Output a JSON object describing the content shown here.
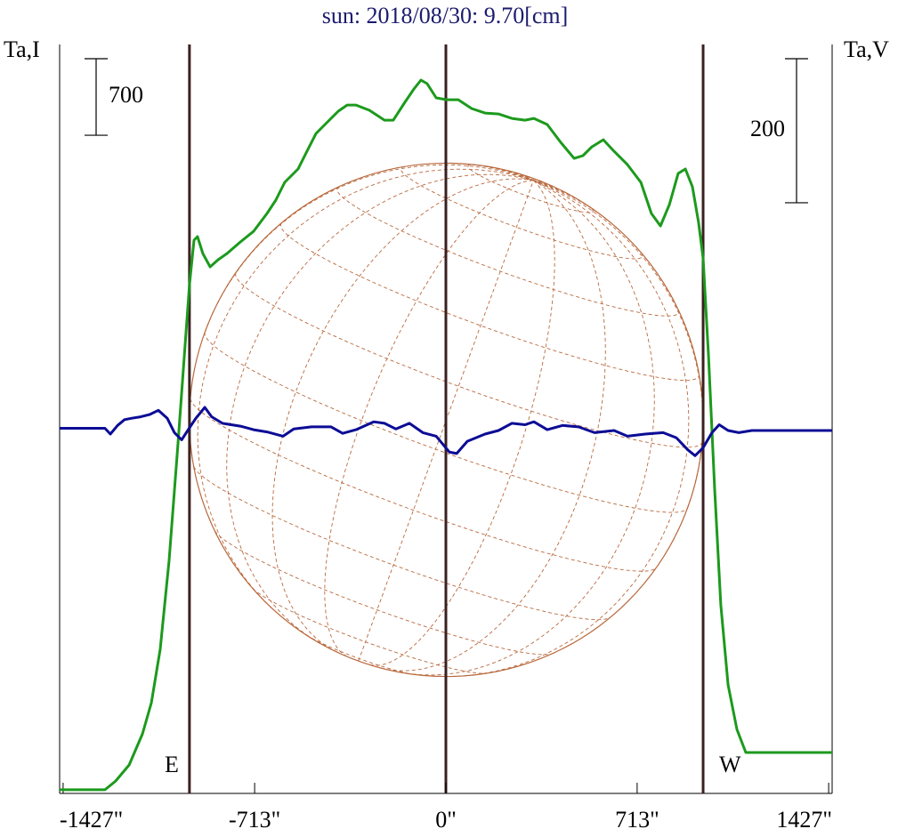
{
  "chart_data": {
    "type": "line",
    "title": "sun: 2018/08/30: 9.70[cm]",
    "ylabel": "Ta,I",
    "y2label": "Ta,V",
    "xlim": [
      -1440,
      1440
    ],
    "ylim": [
      0,
      6850
    ],
    "y2lim": [
      -500,
      540
    ],
    "xticks": [
      {
        "value": -1427,
        "label": "-1427\""
      },
      {
        "value": -713,
        "label": "-713\""
      },
      {
        "value": 0,
        "label": "0\""
      },
      {
        "value": 713,
        "label": "713\""
      },
      {
        "value": 1427,
        "label": "1427\""
      }
    ],
    "vlines": [
      -956,
      0,
      959
    ],
    "vline_color": "#3b2020",
    "limb_labels": [
      "E",
      "W"
    ],
    "disk_color": "#b8693d",
    "i_scale": 700,
    "v_scale": 200,
    "series": [
      {
        "color": "#1c9a1c",
        "axis": "y",
        "x": [
          -1440,
          -1271,
          -1231,
          -1181,
          -1131,
          -1098,
          -1065,
          -1032,
          -999,
          -975,
          -956,
          -939,
          -926,
          -906,
          -879,
          -849,
          -816,
          -766,
          -717,
          -667,
          -634,
          -601,
          -551,
          -518,
          -484,
          -451,
          -401,
          -368,
          -335,
          -285,
          -229,
          -196,
          -153,
          -119,
          -93,
          -70,
          -36,
          3,
          46,
          96,
          146,
          196,
          246,
          295,
          328,
          378,
          428,
          478,
          511,
          544,
          587,
          627,
          677,
          727,
          766,
          800,
          833,
          866,
          893,
          919,
          942,
          959,
          979,
          1002,
          1025,
          1052,
          1085,
          1118,
          1440
        ],
        "values": [
          33,
          33,
          114,
          260,
          545,
          830,
          1318,
          2131,
          3189,
          4002,
          4653,
          5060,
          5093,
          4938,
          4816,
          4881,
          4938,
          5044,
          5141,
          5304,
          5426,
          5589,
          5711,
          5873,
          6036,
          6118,
          6240,
          6296,
          6296,
          6248,
          6158,
          6158,
          6321,
          6443,
          6524,
          6492,
          6362,
          6345,
          6345,
          6264,
          6223,
          6215,
          6174,
          6158,
          6174,
          6118,
          5955,
          5808,
          5833,
          5914,
          5979,
          5873,
          5751,
          5589,
          5304,
          5190,
          5385,
          5670,
          5711,
          5548,
          5223,
          4897,
          4002,
          2782,
          1725,
          992,
          586,
          374,
          374
        ]
      },
      {
        "color": "#0c0c96",
        "axis": "y2",
        "x": [
          -1440,
          -1271,
          -1251,
          -1224,
          -1198,
          -1171,
          -1138,
          -1105,
          -1072,
          -1039,
          -1012,
          -985,
          -959,
          -932,
          -899,
          -873,
          -833,
          -766,
          -717,
          -667,
          -607,
          -567,
          -501,
          -428,
          -385,
          -335,
          -269,
          -229,
          -186,
          -136,
          -86,
          -36,
          13,
          40,
          80,
          146,
          196,
          246,
          295,
          328,
          378,
          435,
          494,
          554,
          627,
          677,
          743,
          810,
          859,
          902,
          929,
          959,
          992,
          1019,
          1052,
          1092,
          1141,
          1440
        ],
        "values": [
          7,
          7,
          -1,
          11,
          19,
          21,
          23,
          26,
          32,
          21,
          1,
          -9,
          6,
          21,
          36,
          23,
          14,
          10,
          5,
          2,
          -4,
          6,
          9,
          9,
          0,
          5,
          16,
          14,
          6,
          14,
          1,
          -4,
          -26,
          -28,
          -11,
          -1,
          4,
          14,
          12,
          16,
          5,
          11,
          9,
          1,
          4,
          -4,
          -1,
          1,
          -6,
          -23,
          -31,
          -20,
          1,
          12,
          4,
          1,
          4,
          4
        ]
      }
    ]
  }
}
